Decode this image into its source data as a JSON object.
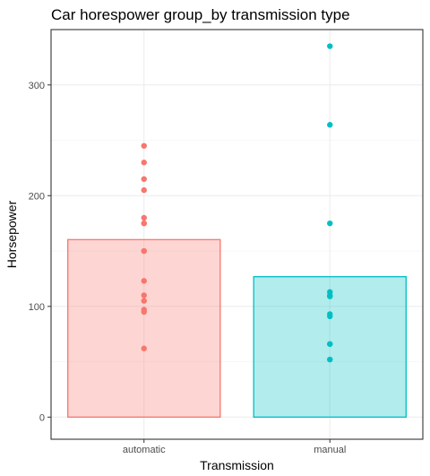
{
  "chart_data": {
    "type": "bar",
    "title": "Car horespower group_by transmission type",
    "xlabel": "Transmission",
    "ylabel": "Horsepower",
    "categories": [
      "automatic",
      "manual"
    ],
    "bar_values": [
      160.3,
      126.8
    ],
    "ylim": [
      -20,
      350
    ],
    "yticks": [
      0,
      100,
      200,
      300
    ],
    "grid": true,
    "legend": "none",
    "colors": {
      "automatic": {
        "fill": "#F8766D",
        "stroke": "#F8766D",
        "fill_opacity": 0.3
      },
      "manual": {
        "fill": "#00BFC4",
        "stroke": "#00BFC4",
        "fill_opacity": 0.3
      }
    },
    "points": [
      {
        "category": "automatic",
        "values": [
          245,
          230,
          215,
          205,
          180,
          175,
          175,
          150,
          150,
          123,
          110,
          105,
          97,
          95,
          62
        ]
      },
      {
        "category": "manual",
        "values": [
          335,
          264,
          175,
          113,
          110,
          109,
          93,
          91,
          66,
          66,
          52
        ]
      }
    ]
  }
}
